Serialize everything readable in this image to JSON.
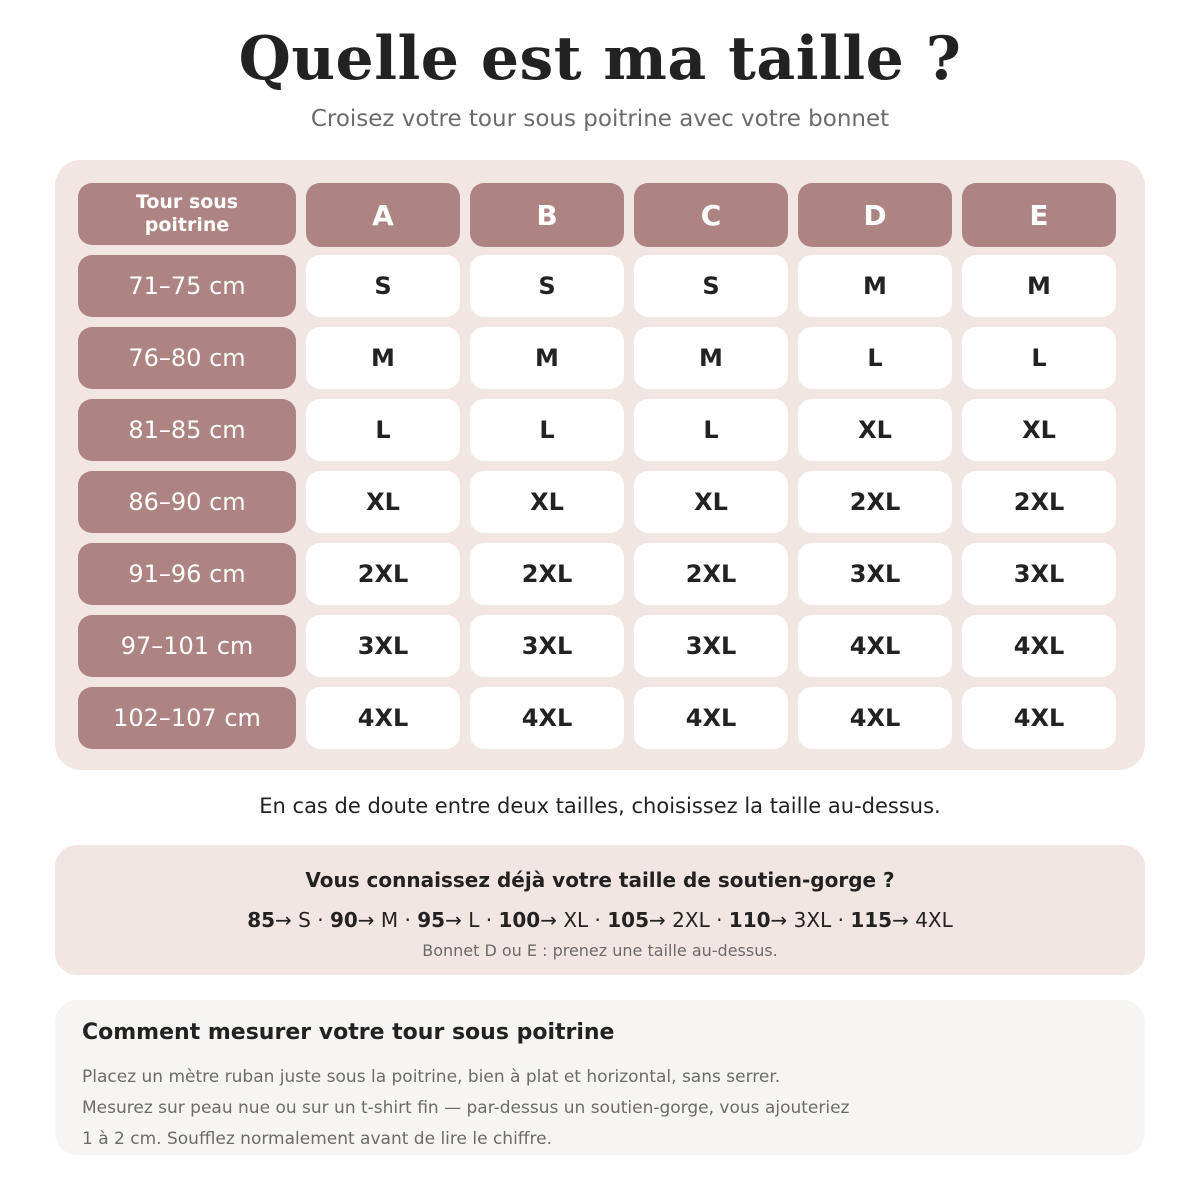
{
  "header": {
    "title": "Quelle est ma taille ?",
    "subtitle": "Croisez votre tour sous poitrine avec votre bonnet"
  },
  "size_table": {
    "corner_label": "Tour sous\npoitrine",
    "cups": [
      "A",
      "B",
      "C",
      "D",
      "E"
    ],
    "rows": [
      {
        "band": "71–75 cm",
        "sizes": [
          "S",
          "S",
          "S",
          "M",
          "M"
        ]
      },
      {
        "band": "76–80 cm",
        "sizes": [
          "M",
          "M",
          "M",
          "L",
          "L"
        ]
      },
      {
        "band": "81–85 cm",
        "sizes": [
          "L",
          "L",
          "L",
          "XL",
          "XL"
        ]
      },
      {
        "band": "86–90 cm",
        "sizes": [
          "XL",
          "XL",
          "XL",
          "2XL",
          "2XL"
        ]
      },
      {
        "band": "91–96 cm",
        "sizes": [
          "2XL",
          "2XL",
          "2XL",
          "3XL",
          "3XL"
        ]
      },
      {
        "band": "97–101 cm",
        "sizes": [
          "3XL",
          "3XL",
          "3XL",
          "4XL",
          "4XL"
        ]
      },
      {
        "band": "102–107 cm",
        "sizes": [
          "4XL",
          "4XL",
          "4XL",
          "4XL",
          "4XL"
        ]
      }
    ]
  },
  "note": "En cas de doute entre deux tailles, choisissez la taille au-dessus.",
  "bra_size_info": {
    "title": "Vous connaissez déjà votre taille de soutien-gorge ?",
    "mapping": [
      {
        "band": "85",
        "size": "S"
      },
      {
        "band": "90",
        "size": "M"
      },
      {
        "band": "95",
        "size": "L"
      },
      {
        "band": "100",
        "size": "XL"
      },
      {
        "band": "105",
        "size": "2XL"
      },
      {
        "band": "110",
        "size": "3XL"
      },
      {
        "band": "115",
        "size": "4XL"
      }
    ],
    "arrow": "→",
    "separator": " · ",
    "note": "Bonnet D ou E : prenez une taille au-dessus."
  },
  "measure_info": {
    "title": "Comment mesurer votre tour sous poitrine",
    "lines": [
      "Placez un mètre ruban juste sous la poitrine, bien à plat et horizontal, sans serrer.",
      "Mesurez sur peau nue ou sur un t-shirt fin — par-dessus un soutien-gorge, vous ajouteriez",
      "1 à 2 cm. Soufflez normalement avant de lire le chiffre."
    ]
  },
  "colors": {
    "accent": "#ad8481",
    "panel_pink": "#f2e6e3",
    "panel_light": "#f7f5f3",
    "text_dark": "#222222",
    "text_muted": "#6b6b6b"
  }
}
